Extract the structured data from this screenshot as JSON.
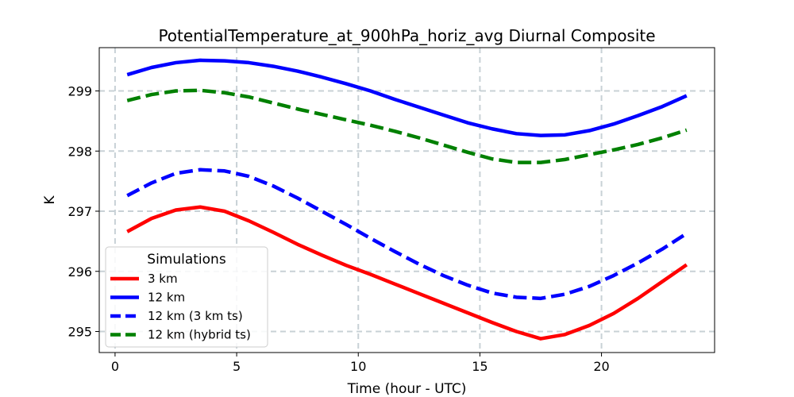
{
  "chart_data": {
    "type": "line",
    "title": "PotentialTemperature_at_900hPa_horiz_avg Diurnal Composite",
    "xlabel": "Time (hour - UTC)",
    "ylabel": "K",
    "xlim": [
      -0.65,
      24.65
    ],
    "ylim": [
      294.65,
      299.72
    ],
    "xticks": [
      0,
      5,
      10,
      15,
      20
    ],
    "yticks": [
      295,
      296,
      297,
      298,
      299
    ],
    "grid": true,
    "x": [
      0.5,
      1.5,
      2.5,
      3.5,
      4.5,
      5.5,
      6.5,
      7.5,
      8.5,
      9.5,
      10.5,
      11.5,
      12.5,
      13.5,
      14.5,
      15.5,
      16.5,
      17.5,
      18.5,
      19.5,
      20.5,
      21.5,
      22.5,
      23.5
    ],
    "legend": {
      "title": "Simulations",
      "position": "lower left"
    },
    "series": [
      {
        "name": "3 km",
        "color": "#ff0000",
        "linestyle": "solid",
        "values": [
          296.66,
          296.88,
          297.02,
          297.07,
          297.0,
          296.84,
          296.65,
          296.45,
          296.27,
          296.1,
          295.95,
          295.79,
          295.63,
          295.47,
          295.31,
          295.15,
          295.0,
          294.88,
          294.95,
          295.1,
          295.3,
          295.55,
          295.83,
          296.11
        ]
      },
      {
        "name": "12 km",
        "color": "#0000ff",
        "linestyle": "solid",
        "values": [
          299.27,
          299.39,
          299.47,
          299.51,
          299.5,
          299.47,
          299.41,
          299.33,
          299.23,
          299.12,
          299.0,
          298.86,
          298.73,
          298.6,
          298.47,
          298.37,
          298.29,
          298.26,
          298.27,
          298.34,
          298.45,
          298.59,
          298.74,
          298.92
        ]
      },
      {
        "name": "12 km (3 km ts)",
        "color": "#0000ff",
        "linestyle": "dashed",
        "values": [
          297.26,
          297.47,
          297.63,
          297.69,
          297.67,
          297.58,
          297.42,
          297.22,
          297.0,
          296.78,
          296.55,
          296.33,
          296.12,
          295.93,
          295.77,
          295.64,
          295.57,
          295.55,
          295.62,
          295.75,
          295.93,
          296.14,
          296.37,
          296.63
        ]
      },
      {
        "name": "12 km (hybrid ts)",
        "color": "#008000",
        "linestyle": "dashed",
        "values": [
          298.84,
          298.94,
          299.0,
          299.01,
          298.97,
          298.9,
          298.8,
          298.7,
          298.61,
          298.52,
          298.43,
          298.33,
          298.22,
          298.1,
          297.98,
          297.87,
          297.81,
          297.81,
          297.86,
          297.94,
          298.02,
          298.11,
          298.22,
          298.35
        ]
      }
    ]
  }
}
